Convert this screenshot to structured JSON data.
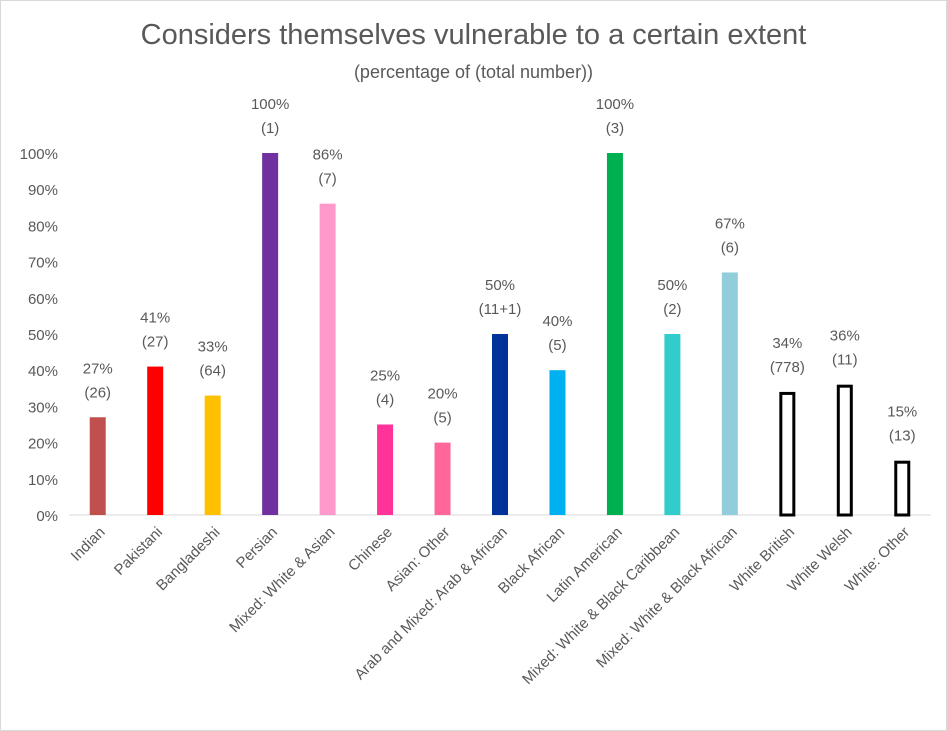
{
  "chart_data": {
    "type": "bar",
    "title": "Considers themselves vulnerable to a certain extent",
    "subtitle": "(percentage of (total number))",
    "xlabel": "",
    "ylabel": "",
    "ylim": [
      0,
      100
    ],
    "y_ticks": [
      "0%",
      "10%",
      "20%",
      "30%",
      "40%",
      "50%",
      "60%",
      "70%",
      "80%",
      "90%",
      "100%"
    ],
    "grid": false,
    "legend": "none",
    "categories": [
      "Indian",
      "Pakistani",
      "Bangladeshi",
      "Persian",
      "Mixed: White & Asian",
      "Chinese",
      "Asian: Other",
      "Arab and Mixed: Arab & African",
      "Black African",
      "Latin American",
      "Mixed: White & Black Caribbean",
      "Mixed: White & Black African",
      "White British",
      "White Welsh",
      "White: Other"
    ],
    "values": [
      27,
      41,
      33,
      100,
      86,
      25,
      20,
      50,
      40,
      100,
      50,
      67,
      34,
      36,
      15
    ],
    "value_labels": [
      "27%",
      "41%",
      "33%",
      "100%",
      "86%",
      "25%",
      "20%",
      "50%",
      "40%",
      "100%",
      "50%",
      "67%",
      "34%",
      "36%",
      "15%"
    ],
    "count_labels": [
      "(26)",
      "(27)",
      "(64)",
      "(1)",
      "(7)",
      "(4)",
      "(5)",
      "(11+1)",
      "(5)",
      "(3)",
      "(2)",
      "(6)",
      "(778)",
      "(11)",
      "(13)"
    ],
    "bar_colors": [
      "#c0504d",
      "#ff0000",
      "#ffc000",
      "#7030a0",
      "#ff99cc",
      "#ff3399",
      "#ff6699",
      "#003399",
      "#00b0f0",
      "#00b050",
      "#33cccc",
      "#92cddc",
      "#ffffff",
      "#ffffff",
      "#ffffff"
    ],
    "bar_outline": [
      "none",
      "none",
      "none",
      "none",
      "none",
      "none",
      "none",
      "none",
      "none",
      "none",
      "none",
      "none",
      "#000000",
      "#000000",
      "#000000"
    ],
    "text_color": "#595959",
    "axis_color": "#d9d9d9"
  }
}
